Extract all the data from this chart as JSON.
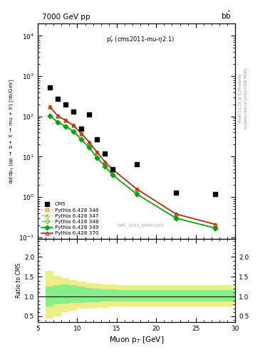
{
  "title_left": "7000 GeV pp",
  "title_right": "b$\\bar{\\rm b}$",
  "annotation": "p$^{l}_{T}$ (cms2011-mu-$\\eta$2.1)",
  "watermark": "CMS_2011_S8941262",
  "ylabel_main": "d$\\sigma$/dp$_{T}$ (pp $\\rightarrow$ b + X $\\rightarrow$ mu + X$^{\\prime}$) [nb/GeV]",
  "ylabel_ratio": "Ratio to CMS",
  "xlabel": "Muon p$_{T}$ [GeV]",
  "right_label": "Rivet 3.1.10, ≥ 3.2M events",
  "right_label2": "mcplots.cern.ch [arXiv:1306.3436]",
  "cms_x": [
    6.5,
    7.5,
    8.5,
    9.5,
    10.5,
    11.5,
    12.5,
    13.5,
    14.5,
    17.5,
    22.5,
    27.5
  ],
  "cms_y": [
    520,
    270,
    200,
    130,
    50,
    110,
    27,
    12,
    5,
    6.5,
    1.3,
    1.2
  ],
  "py346_x": [
    6.5,
    7.5,
    8.5,
    9.5,
    10.5,
    11.5,
    12.5,
    13.5,
    14.5,
    17.5,
    22.5,
    27.5
  ],
  "py346_y": [
    175,
    105,
    80,
    60,
    38,
    23,
    13,
    7.5,
    4.8,
    1.6,
    0.38,
    0.21
  ],
  "py347_x": [
    6.5,
    7.5,
    8.5,
    9.5,
    10.5,
    11.5,
    12.5,
    13.5,
    14.5,
    17.5,
    22.5,
    27.5
  ],
  "py347_y": [
    175,
    105,
    80,
    60,
    38,
    23,
    13,
    7.5,
    4.8,
    1.6,
    0.38,
    0.21
  ],
  "py348_x": [
    6.5,
    7.5,
    8.5,
    9.5,
    10.5,
    11.5,
    12.5,
    13.5,
    14.5,
    17.5,
    22.5,
    27.5
  ],
  "py348_y": [
    105,
    73,
    57,
    43,
    27,
    17,
    9.5,
    5.8,
    3.5,
    1.2,
    0.3,
    0.17
  ],
  "py349_x": [
    6.5,
    7.5,
    8.5,
    9.5,
    10.5,
    11.5,
    12.5,
    13.5,
    14.5,
    17.5,
    22.5,
    27.5
  ],
  "py349_y": [
    105,
    73,
    57,
    43,
    27,
    17,
    9.5,
    5.8,
    3.5,
    1.2,
    0.3,
    0.17
  ],
  "py370_x": [
    6.5,
    7.5,
    8.5,
    9.5,
    10.5,
    11.5,
    12.5,
    13.5,
    14.5,
    17.5,
    22.5,
    27.5
  ],
  "py370_y": [
    175,
    105,
    80,
    60,
    38,
    23,
    13,
    7.5,
    4.8,
    1.6,
    0.38,
    0.21
  ],
  "color_346": "#c8a000",
  "color_347": "#aacc00",
  "color_348": "#55cc55",
  "color_349": "#00aa00",
  "color_370": "#bb2222",
  "ratio_x_edges": [
    6,
    7,
    8,
    9,
    10,
    11,
    12,
    13,
    14,
    15,
    16,
    17,
    18,
    19,
    20,
    25,
    30
  ],
  "ratio_yellow_lo": [
    0.44,
    0.5,
    0.6,
    0.64,
    0.7,
    0.7,
    0.72,
    0.72,
    0.74,
    0.74,
    0.74,
    0.74,
    0.74,
    0.74,
    0.74,
    0.74
  ],
  "ratio_yellow_hi": [
    1.65,
    1.52,
    1.47,
    1.42,
    1.38,
    1.35,
    1.32,
    1.3,
    1.3,
    1.28,
    1.28,
    1.28,
    1.28,
    1.28,
    1.28,
    1.28
  ],
  "ratio_green_lo": [
    0.74,
    0.8,
    0.82,
    0.83,
    0.84,
    0.85,
    0.86,
    0.87,
    0.88,
    0.88,
    0.88,
    0.88,
    0.88,
    0.88,
    0.88,
    0.88
  ],
  "ratio_green_hi": [
    1.26,
    1.28,
    1.3,
    1.28,
    1.25,
    1.22,
    1.2,
    1.18,
    1.18,
    1.17,
    1.17,
    1.17,
    1.17,
    1.17,
    1.17,
    1.17
  ],
  "xlim": [
    6,
    30
  ],
  "ylim_main_lo": 0.09,
  "ylim_main_hi": 20000,
  "ylim_ratio_lo": 0.35,
  "ylim_ratio_hi": 2.45,
  "bg_color": "#ffffff"
}
